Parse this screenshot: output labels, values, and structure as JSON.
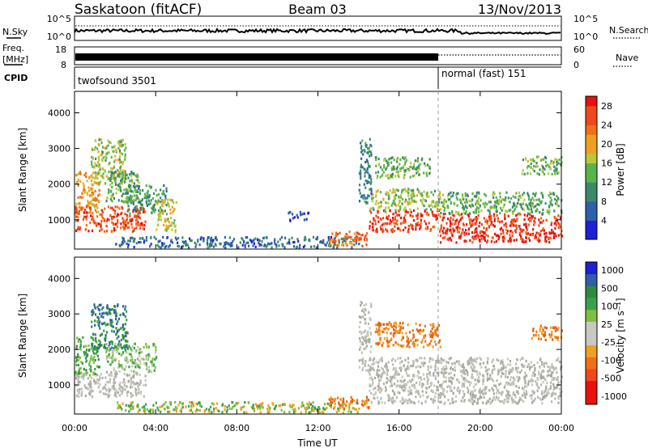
{
  "header": {
    "station": "Saskatoon (fitACF)",
    "beam": "Beam 03",
    "date": "13/Nov/2013"
  },
  "strip_labels": {
    "nsky": "N.Sky",
    "nsky_top": "10^5",
    "nsky_bottom": "10^0",
    "nsearch": "N.Search",
    "nsearch_top": "10^5",
    "nsearch_bottom": "10^0",
    "freq_line1": "Freq.",
    "freq_line2": "[MHz]",
    "freq_top": "18",
    "freq_bottom": "8",
    "nave": "Nave",
    "nave_top": "60",
    "nave_bottom": "0",
    "cpid": "CPID",
    "cpid_1": "twofsound 3501",
    "cpid_2": "normal (fast) 151"
  },
  "chart_data": [
    {
      "type": "heatmap",
      "title": "",
      "xlabel": "",
      "ylabel": "Slant Range [km]",
      "xlim": [
        "00:00",
        "24:00"
      ],
      "ylim": [
        180,
        4600
      ],
      "yticks": [
        "1000",
        "2000",
        "3000",
        "4000"
      ],
      "colorbar_label": "Power [dB]",
      "colorbar_ticks": [
        "4",
        "8",
        "12",
        "16",
        "20",
        "24",
        "28"
      ],
      "colorbar_range": [
        0,
        30
      ],
      "mode_change": "18:00",
      "regions": [
        {
          "t": [
            0.0,
            1.2
          ],
          "r": [
            1200,
            2400
          ],
          "level": 22
        },
        {
          "t": [
            0.0,
            3.5
          ],
          "r": [
            700,
            1400
          ],
          "level": 26
        },
        {
          "t": [
            0.8,
            2.5
          ],
          "r": [
            2000,
            3300
          ],
          "level": 16
        },
        {
          "t": [
            1.5,
            3.2
          ],
          "r": [
            1500,
            2400
          ],
          "level": 14
        },
        {
          "t": [
            2.5,
            4.5
          ],
          "r": [
            1200,
            2000
          ],
          "level": 12
        },
        {
          "t": [
            4.0,
            5.0
          ],
          "r": [
            700,
            1600
          ],
          "level": 18
        },
        {
          "t": [
            2.0,
            14.0
          ],
          "r": [
            250,
            550
          ],
          "level": 8
        },
        {
          "t": [
            12.5,
            14.5
          ],
          "r": [
            300,
            700
          ],
          "level": 24
        },
        {
          "t": [
            14.5,
            18.0
          ],
          "r": [
            700,
            1300
          ],
          "level": 27
        },
        {
          "t": [
            14.5,
            18.0
          ],
          "r": [
            1300,
            1900
          ],
          "level": 16
        },
        {
          "t": [
            14.8,
            17.5
          ],
          "r": [
            2200,
            2800
          ],
          "level": 14
        },
        {
          "t": [
            18.0,
            24.0
          ],
          "r": [
            400,
            1200
          ],
          "level": 28
        },
        {
          "t": [
            18.0,
            24.0
          ],
          "r": [
            1200,
            1800
          ],
          "level": 14
        },
        {
          "t": [
            10.5,
            11.5
          ],
          "r": [
            1000,
            1250
          ],
          "level": 5
        },
        {
          "t": [
            14.0,
            14.6
          ],
          "r": [
            1500,
            3300
          ],
          "level": 10
        },
        {
          "t": [
            22.0,
            24.0
          ],
          "r": [
            2300,
            2800
          ],
          "level": 14
        }
      ]
    },
    {
      "type": "heatmap",
      "title": "",
      "xlabel": "Time UT",
      "ylabel": "Slant Range [km]",
      "xlim": [
        "00:00",
        "24:00"
      ],
      "xticks": [
        "00:00",
        "04:00",
        "08:00",
        "12:00",
        "16:00",
        "20:00",
        "00:00"
      ],
      "ylim": [
        180,
        4600
      ],
      "yticks": [
        "1000",
        "2000",
        "3000",
        "4000"
      ],
      "colorbar_label": "Velocity [m s⁻¹]",
      "colorbar_ticks": [
        "1000",
        "500",
        "100",
        "25",
        "-25",
        "-100",
        "-500",
        "-1000"
      ],
      "mode_change": "18:00",
      "regions": [
        {
          "t": [
            0.0,
            3.5
          ],
          "r": [
            700,
            1400
          ],
          "level": "ground"
        },
        {
          "t": [
            0.0,
            1.2
          ],
          "r": [
            1300,
            2400
          ],
          "level": "toward_med"
        },
        {
          "t": [
            0.8,
            2.6
          ],
          "r": [
            2000,
            3300
          ],
          "level": "toward_fast"
        },
        {
          "t": [
            1.5,
            4.0
          ],
          "r": [
            1400,
            2200
          ],
          "level": "toward_slow"
        },
        {
          "t": [
            2.0,
            14.0
          ],
          "r": [
            250,
            550
          ],
          "level": "mix_low"
        },
        {
          "t": [
            12.5,
            14.5
          ],
          "r": [
            350,
            700
          ],
          "level": "away_med"
        },
        {
          "t": [
            14.5,
            24.0
          ],
          "r": [
            500,
            1800
          ],
          "level": "ground"
        },
        {
          "t": [
            14.8,
            18.0
          ],
          "r": [
            2100,
            2800
          ],
          "level": "away_med"
        },
        {
          "t": [
            22.5,
            24.0
          ],
          "r": [
            2300,
            2700
          ],
          "level": "away_med"
        },
        {
          "t": [
            14.0,
            14.6
          ],
          "r": [
            1400,
            3400
          ],
          "level": "ground"
        }
      ]
    }
  ]
}
